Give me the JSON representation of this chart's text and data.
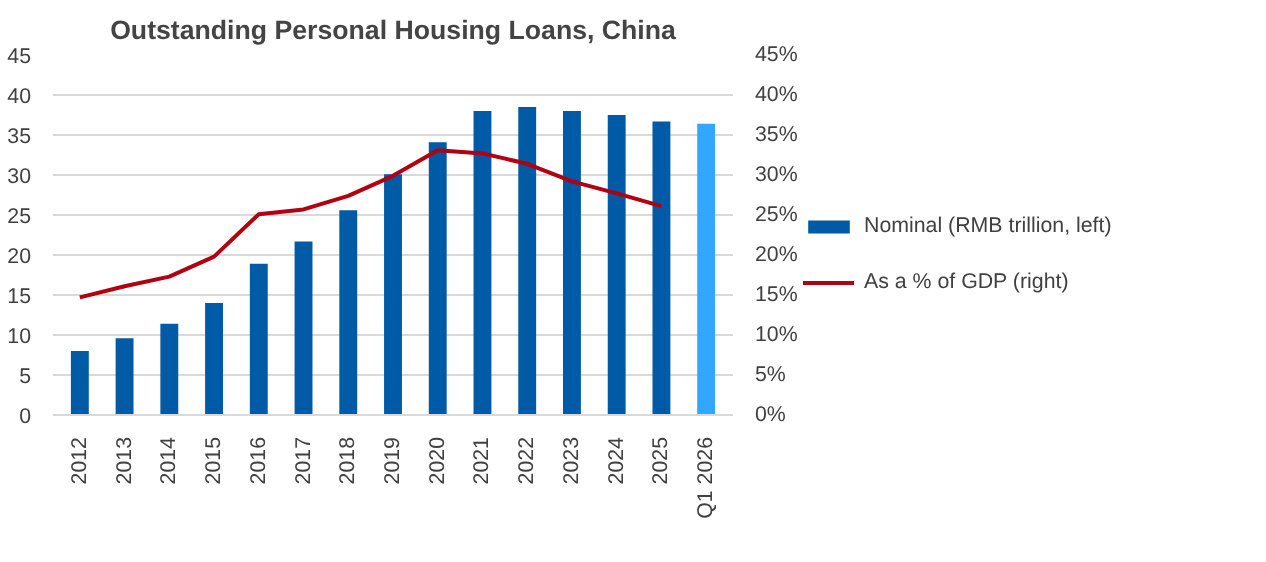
{
  "chart_data": {
    "type": "bar",
    "title": "Outstanding Personal Housing Loans, China",
    "categories": [
      "2012",
      "2013",
      "2014",
      "2015",
      "2016",
      "2017",
      "2018",
      "2019",
      "2020",
      "2021",
      "2022",
      "2023",
      "2024",
      "2025",
      "Q1 2026"
    ],
    "series": [
      {
        "name": "Nominal (RMB trillion, left)",
        "color": "#005aa6",
        "colors": [
          "#005aa6",
          "#005aa6",
          "#005aa6",
          "#005aa6",
          "#005aa6",
          "#005aa6",
          "#005aa6",
          "#005aa6",
          "#005aa6",
          "#005aa6",
          "#005aa6",
          "#005aa6",
          "#005aa6",
          "#005aa6",
          "#33a6ff"
        ],
        "values": [
          8.0,
          9.6,
          11.4,
          14.0,
          18.9,
          21.7,
          25.6,
          30.1,
          34.1,
          38.0,
          38.5,
          38.0,
          37.5,
          36.7,
          36.4
        ]
      },
      {
        "name": "As a % of GDP (right)",
        "type": "line",
        "axis": "y2",
        "color": "#b00012",
        "values": [
          14.7,
          16.1,
          17.3,
          19.8,
          25.1,
          25.7,
          27.4,
          29.9,
          33.1,
          32.7,
          31.4,
          29.2,
          27.7,
          26.1,
          null
        ]
      }
    ],
    "ylim": [
      0,
      45
    ],
    "yticks": [
      0,
      5,
      10,
      15,
      20,
      25,
      30,
      35,
      40,
      45
    ],
    "y2lim": [
      0,
      45
    ],
    "y2ticks": [
      {
        "value": 0,
        "label": "0%"
      },
      {
        "value": 5,
        "label": "5%"
      },
      {
        "value": 10,
        "label": "10%"
      },
      {
        "value": 15,
        "label": "15%"
      },
      {
        "value": 20,
        "label": "20%"
      },
      {
        "value": 25,
        "label": "25%"
      },
      {
        "value": 30,
        "label": "30%"
      },
      {
        "value": 35,
        "label": "35%"
      },
      {
        "value": 40,
        "label": "40%"
      },
      {
        "value": 45,
        "label": "45%"
      }
    ],
    "grid": "y",
    "legend": "right",
    "marker": "none",
    "line_style": "solid"
  }
}
